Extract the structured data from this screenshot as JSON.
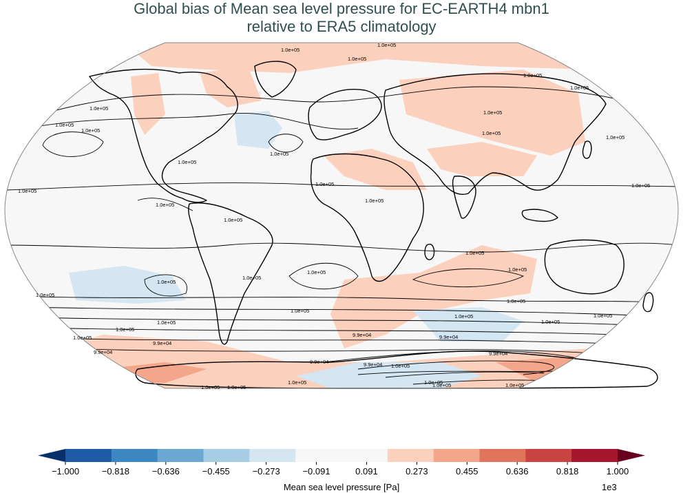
{
  "figure": {
    "title_line1": "Global bias of Mean sea level pressure for EC-EARTH4 mbn1",
    "title_line2": "relative to ERA5 climatology"
  },
  "colorbar": {
    "label": "Mean sea level pressure [Pa]",
    "exponent": "1e3",
    "ticks": [
      "−1.000",
      "−0.818",
      "−0.636",
      "−0.455",
      "−0.273",
      "−0.091",
      "0.091",
      "0.273",
      "0.455",
      "0.636",
      "0.818",
      "1.000"
    ],
    "colors": [
      "#1f5aa6",
      "#3d87c2",
      "#6ca9d2",
      "#a6cde3",
      "#d4e6f1",
      "#f7f7f7",
      "#f7f7f7",
      "#fbd0bc",
      "#f4a68a",
      "#e0755c",
      "#c84440",
      "#a5162c"
    ],
    "extend_min_color": "#08306b",
    "extend_max_color": "#67001f"
  },
  "contour_labels": [
    "1.0e+05",
    "1.0e+05",
    "1.0e+05",
    "1.0e+05",
    "1.0e+05",
    "1.0e+05",
    "1.0e+05",
    "1.0e+05",
    "1.0e+05",
    "1.0e+05",
    "1.0e+05",
    "1.0e+05",
    "1.0e+05",
    "1.0e+05",
    "1.0e+05",
    "1.0e+05",
    "1.0e+05",
    "1.0e+05",
    "1.0e+05",
    "1.0e+05",
    "1.0e+05",
    "1.0e+05",
    "1.0e+05",
    "1.0e+05",
    "1.0e+05",
    "1.0e+05",
    "1.0e+05",
    "1.0e+05",
    "1.0e+05",
    "1.0e+05",
    "1.0e+05",
    "9.9e+04",
    "9.9e+04",
    "9.9e+04",
    "9.9e+04",
    "9.9e+04",
    "9.9e+04",
    "9.9e+04",
    "1.0e+05",
    "1.0e+05",
    "1.0e+05",
    "1.0e+05",
    "1.0e+05",
    "1.0e+05",
    "1.0e+05",
    "1.0e+05",
    "1.0e+05"
  ]
}
